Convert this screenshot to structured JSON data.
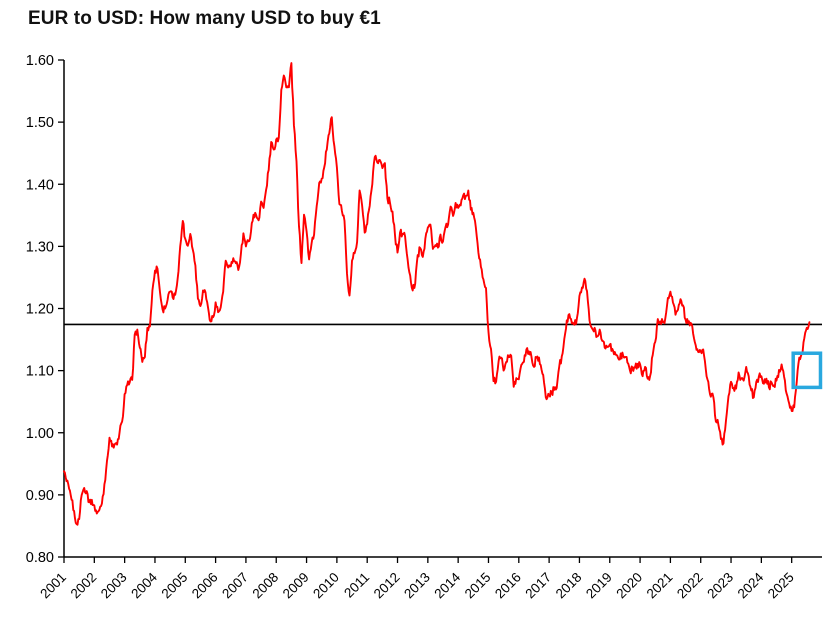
{
  "chart_data": {
    "type": "line",
    "title": "EUR to USD: How many USD to buy  €1",
    "series_name": "EUR/USD exchange rate",
    "frequency": "monthly",
    "x_start": 2001.0,
    "xlim": [
      2001,
      2026
    ],
    "ylim": [
      0.8,
      1.6
    ],
    "yticks": [
      0.8,
      0.9,
      1.0,
      1.1,
      1.2,
      1.3,
      1.4,
      1.5,
      1.6
    ],
    "xticks": [
      2001,
      2002,
      2003,
      2004,
      2005,
      2006,
      2007,
      2008,
      2009,
      2010,
      2011,
      2012,
      2013,
      2014,
      2015,
      2016,
      2017,
      2018,
      2019,
      2020,
      2021,
      2022,
      2023,
      2024,
      2025
    ],
    "grid": false,
    "legend": "none",
    "line_color": "#FF0000",
    "axis_color": "#000000",
    "reference_line": {
      "value": 1.1743,
      "color": "#000000"
    },
    "highlight_box": {
      "x0": 2025.05,
      "x1": 2025.95,
      "y0": 1.073,
      "y1": 1.128,
      "color": "#29A8DF"
    },
    "values": [
      0.938,
      0.922,
      0.91,
      0.892,
      0.874,
      0.853,
      0.861,
      0.9,
      0.911,
      0.906,
      0.888,
      0.892,
      0.883,
      0.87,
      0.876,
      0.886,
      0.917,
      0.955,
      0.992,
      0.978,
      0.981,
      0.981,
      1.001,
      1.018,
      1.062,
      1.077,
      1.081,
      1.085,
      1.158,
      1.166,
      1.137,
      1.114,
      1.122,
      1.169,
      1.171,
      1.229,
      1.261,
      1.264,
      1.226,
      1.199,
      1.2,
      1.214,
      1.227,
      1.218,
      1.222,
      1.249,
      1.3,
      1.341,
      1.312,
      1.301,
      1.32,
      1.294,
      1.269,
      1.216,
      1.204,
      1.229,
      1.226,
      1.202,
      1.179,
      1.186,
      1.21,
      1.194,
      1.202,
      1.227,
      1.277,
      1.266,
      1.268,
      1.281,
      1.273,
      1.262,
      1.288,
      1.321,
      1.3,
      1.308,
      1.324,
      1.351,
      1.351,
      1.342,
      1.372,
      1.362,
      1.391,
      1.423,
      1.468,
      1.456,
      1.472,
      1.475,
      1.552,
      1.575,
      1.556,
      1.556,
      1.595,
      1.495,
      1.437,
      1.332,
      1.273,
      1.351,
      1.324,
      1.279,
      1.305,
      1.319,
      1.365,
      1.402,
      1.409,
      1.427,
      1.456,
      1.482,
      1.508,
      1.461,
      1.427,
      1.368,
      1.357,
      1.341,
      1.256,
      1.221,
      1.277,
      1.289,
      1.307,
      1.39,
      1.366,
      1.322,
      1.336,
      1.365,
      1.4,
      1.444,
      1.435,
      1.439,
      1.426,
      1.434,
      1.377,
      1.371,
      1.356,
      1.318,
      1.29,
      1.322,
      1.32,
      1.316,
      1.279,
      1.253,
      1.229,
      1.24,
      1.286,
      1.297,
      1.283,
      1.312,
      1.33,
      1.335,
      1.296,
      1.302,
      1.298,
      1.319,
      1.308,
      1.331,
      1.335,
      1.364,
      1.349,
      1.37,
      1.362,
      1.366,
      1.382,
      1.381,
      1.39,
      1.359,
      1.354,
      1.331,
      1.29,
      1.267,
      1.247,
      1.233,
      1.162,
      1.135,
      1.083,
      1.082,
      1.115,
      1.121,
      1.1,
      1.114,
      1.122,
      1.124,
      1.074,
      1.088,
      1.086,
      1.109,
      1.114,
      1.134,
      1.131,
      1.123,
      1.106,
      1.121,
      1.121,
      1.102,
      1.08,
      1.054,
      1.061,
      1.065,
      1.069,
      1.072,
      1.106,
      1.123,
      1.151,
      1.181,
      1.191,
      1.176,
      1.174,
      1.184,
      1.22,
      1.234,
      1.248,
      1.228,
      1.181,
      1.168,
      1.169,
      1.155,
      1.166,
      1.148,
      1.137,
      1.138,
      1.142,
      1.135,
      1.13,
      1.124,
      1.118,
      1.129,
      1.122,
      1.113,
      1.1,
      1.105,
      1.105,
      1.111,
      1.11,
      1.091,
      1.106,
      1.087,
      1.092,
      1.125,
      1.146,
      1.183,
      1.179,
      1.178,
      1.184,
      1.217,
      1.227,
      1.21,
      1.19,
      1.198,
      1.215,
      1.205,
      1.182,
      1.177,
      1.177,
      1.16,
      1.141,
      1.13,
      1.131,
      1.134,
      1.102,
      1.082,
      1.058,
      1.057,
      1.018,
      1.013,
      0.99,
      0.983,
      1.02,
      1.059,
      1.082,
      1.072,
      1.071,
      1.097,
      1.087,
      1.084,
      1.106,
      1.091,
      1.068,
      1.057,
      1.082,
      1.09,
      1.091,
      1.079,
      1.087,
      1.073,
      1.081,
      1.076,
      1.084,
      1.101,
      1.11,
      1.09,
      1.063,
      1.047,
      1.035,
      1.041,
      1.081,
      1.121,
      1.128,
      1.152,
      1.169,
      1.178
    ]
  }
}
